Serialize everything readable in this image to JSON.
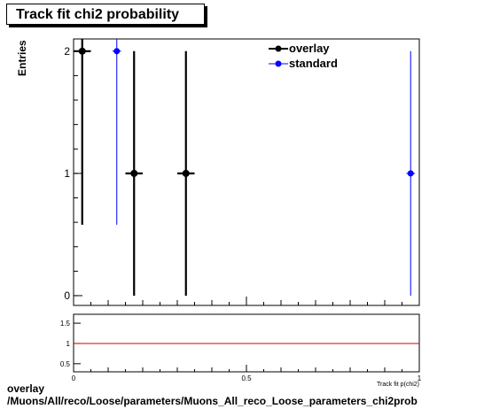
{
  "title": "Track fit chi2 probability",
  "footer": {
    "line1": "overlay",
    "line2": "/Muons/All/reco/Loose/parameters/Muons_All_reco_Loose_parameters_chi2prob"
  },
  "colors": {
    "overlay": "#000000",
    "standard": "#0000ff",
    "ratio_line": "#cc0000"
  },
  "chart_data": [
    {
      "type": "scatter",
      "title": "Track fit chi2 probability",
      "xlabel": "",
      "ylabel": "Entries",
      "xlim": [
        0,
        1
      ],
      "ylim": [
        -0.08,
        2.1
      ],
      "yticks": [
        0,
        1,
        2
      ],
      "legend": "top-right",
      "series": [
        {
          "name": "overlay",
          "color": "#000000",
          "points": [
            {
              "x": 0.025,
              "xerr": 0.025,
              "y": 2,
              "yerr_lo": 1.42,
              "yerr_hi": 1.0
            },
            {
              "x": 0.175,
              "xerr": 0.025,
              "y": 1,
              "yerr_lo": 1.0,
              "yerr_hi": 1.0
            },
            {
              "x": 0.325,
              "xerr": 0.025,
              "y": 1,
              "yerr_lo": 1.0,
              "yerr_hi": 1.0
            }
          ]
        },
        {
          "name": "standard",
          "color": "#0000ff",
          "points": [
            {
              "x": 0.125,
              "xerr": 0.0125,
              "y": 2,
              "yerr_lo": 1.42,
              "yerr_hi": 1.0
            },
            {
              "x": 0.975,
              "xerr": 0.0125,
              "y": 1,
              "yerr_lo": 1.0,
              "yerr_hi": 1.0
            }
          ]
        }
      ]
    },
    {
      "type": "line",
      "xlabel": "Track fit p(chi2)",
      "xlim": [
        0,
        1
      ],
      "ylim": [
        0.3,
        1.72
      ],
      "yticks": [
        0.5,
        1,
        1.5
      ],
      "yticklabels": [
        "0.5",
        "1",
        "1.5"
      ],
      "xticks": [
        0,
        0.5,
        1
      ],
      "xticklabels": [
        "0",
        "0.5",
        "1"
      ],
      "series": [
        {
          "x": [
            0,
            1
          ],
          "values": [
            1,
            1
          ]
        }
      ]
    }
  ]
}
